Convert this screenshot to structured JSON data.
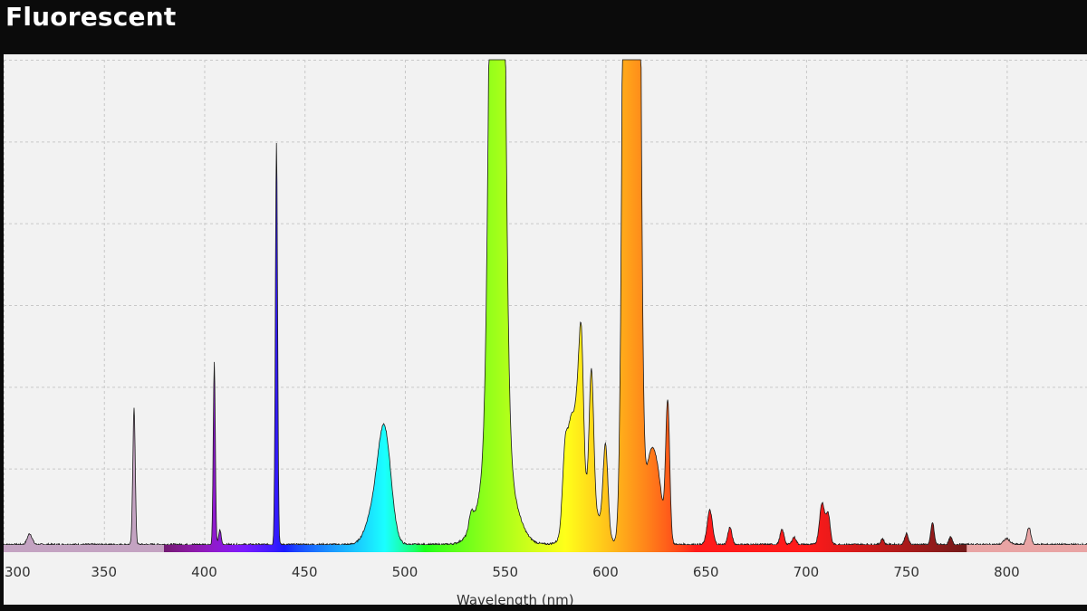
{
  "page": {
    "title": "Fluorescent"
  },
  "chart_data": {
    "type": "area",
    "title": "Fluorescent",
    "xlabel": "Wavelength (nm)",
    "ylabel": "",
    "xlim": [
      300,
      840
    ],
    "ylim": [
      0,
      1
    ],
    "grid": true,
    "x_ticks": [
      300,
      350,
      400,
      450,
      500,
      550,
      600,
      650,
      700,
      750,
      800
    ],
    "x_tick_labels": [
      "300",
      "350",
      "400",
      "450",
      "500",
      "550",
      "600",
      "650",
      "700",
      "750",
      "800"
    ],
    "y_grid_count": 6,
    "baseline": 0.012,
    "clipped_top": 1.0,
    "peaks": [
      {
        "center": 313,
        "height": 0.022,
        "width": 1.2
      },
      {
        "center": 365,
        "height": 0.28,
        "width": 0.6
      },
      {
        "center": 405,
        "height": 0.37,
        "width": 0.5
      },
      {
        "center": 407.8,
        "height": 0.03,
        "width": 0.6
      },
      {
        "center": 436,
        "height": 0.82,
        "width": 0.55
      },
      {
        "center": 490,
        "height": 0.21,
        "width": 3.2
      },
      {
        "center": 485,
        "height": 0.07,
        "width": 4.0
      },
      {
        "center": 546,
        "height": 3.0,
        "width": 2.6
      },
      {
        "center": 546,
        "height": 0.22,
        "width": 7.0
      },
      {
        "center": 533,
        "height": 0.03,
        "width": 1.0
      },
      {
        "center": 580,
        "height": 0.18,
        "width": 1.4
      },
      {
        "center": 583,
        "height": 0.18,
        "width": 1.4
      },
      {
        "center": 586,
        "height": 0.19,
        "width": 1.4
      },
      {
        "center": 588,
        "height": 0.28,
        "width": 1.1
      },
      {
        "center": 593,
        "height": 0.27,
        "width": 1.1
      },
      {
        "center": 590,
        "height": 0.1,
        "width": 6.0
      },
      {
        "center": 600,
        "height": 0.18,
        "width": 1.2
      },
      {
        "center": 611,
        "height": 3.0,
        "width": 1.8
      },
      {
        "center": 615,
        "height": 3.0,
        "width": 1.8
      },
      {
        "center": 622,
        "height": 0.15,
        "width": 2.5
      },
      {
        "center": 626,
        "height": 0.12,
        "width": 2.5
      },
      {
        "center": 631,
        "height": 0.28,
        "width": 1.0
      },
      {
        "center": 652,
        "height": 0.07,
        "width": 1.3
      },
      {
        "center": 662,
        "height": 0.035,
        "width": 1.0
      },
      {
        "center": 688,
        "height": 0.03,
        "width": 1.0
      },
      {
        "center": 694,
        "height": 0.015,
        "width": 1.0
      },
      {
        "center": 708,
        "height": 0.085,
        "width": 1.3
      },
      {
        "center": 711,
        "height": 0.06,
        "width": 1.0
      },
      {
        "center": 738,
        "height": 0.012,
        "width": 0.8
      },
      {
        "center": 750,
        "height": 0.022,
        "width": 0.9
      },
      {
        "center": 763,
        "height": 0.045,
        "width": 0.8
      },
      {
        "center": 772,
        "height": 0.015,
        "width": 0.8
      },
      {
        "center": 811,
        "height": 0.035,
        "width": 1.0
      },
      {
        "center": 800,
        "height": 0.012,
        "width": 1.5
      }
    ],
    "colors": {
      "uv_fill": "#c4a3c2",
      "ir_fill": "#e9a4a4",
      "grid": "#c8c8c8",
      "line": "#1a1a1a"
    }
  }
}
